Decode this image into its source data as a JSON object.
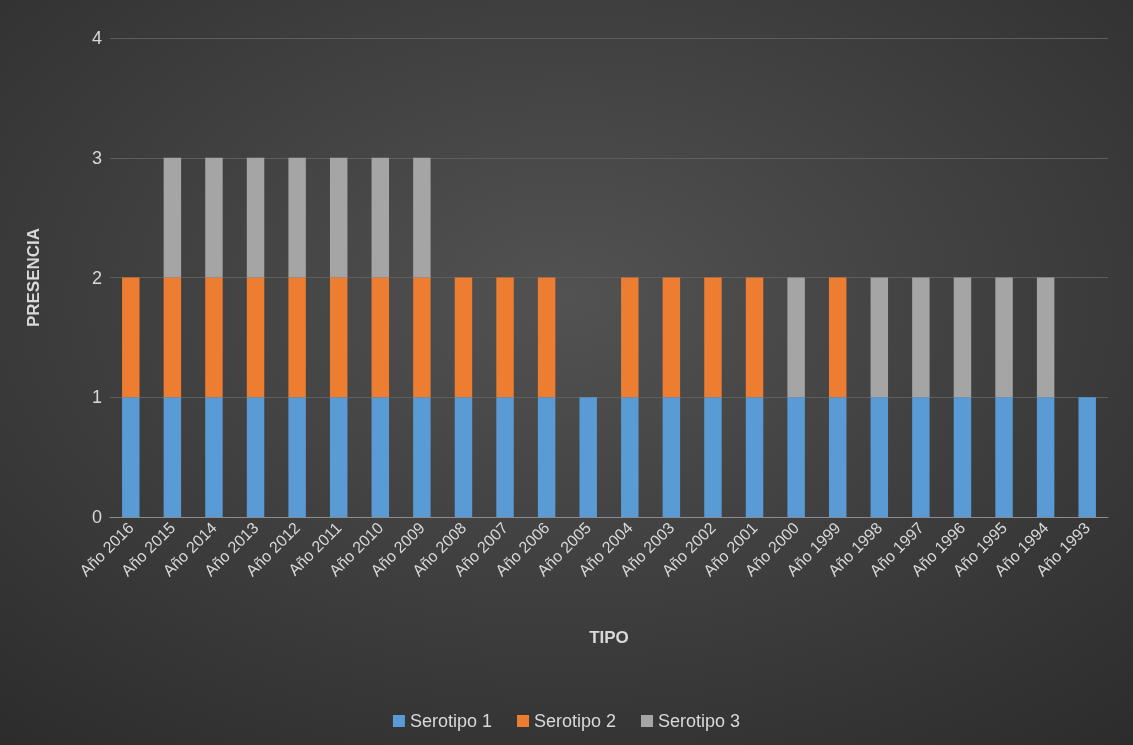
{
  "chart_data": {
    "type": "bar",
    "stacked": true,
    "xlabel": "TIPO",
    "ylabel": "PRESENCIA",
    "categories": [
      "Año 2016",
      "Año 2015",
      "Año 2014",
      "Año 2013",
      "Año 2012",
      "Año 2011",
      "Año 2010",
      "Año 2009",
      "Año 2008",
      "Año 2007",
      "Año 2006",
      "Año 2005",
      "Año 2004",
      "Año 2003",
      "Año 2002",
      "Año 2001",
      "Año 2000",
      "Año 1999",
      "Año 1998",
      "Año 1997",
      "Año 1996",
      "Año 1995",
      "Año 1994",
      "Año 1993"
    ],
    "series": [
      {
        "name": "Serotipo 1",
        "color": "#5b9bd5",
        "values": [
          1,
          1,
          1,
          1,
          1,
          1,
          1,
          1,
          1,
          1,
          1,
          1,
          1,
          1,
          1,
          1,
          1,
          1,
          1,
          1,
          1,
          1,
          1,
          1
        ]
      },
      {
        "name": "Serotipo 2",
        "color": "#ed7d31",
        "values": [
          1,
          1,
          1,
          1,
          1,
          1,
          1,
          1,
          1,
          1,
          1,
          0,
          1,
          1,
          1,
          1,
          0,
          1,
          0,
          0,
          0,
          0,
          0,
          0
        ]
      },
      {
        "name": "Serotipo 3",
        "color": "#a5a5a5",
        "values": [
          0,
          1,
          1,
          1,
          1,
          1,
          1,
          1,
          0,
          0,
          0,
          0,
          0,
          0,
          0,
          0,
          1,
          0,
          1,
          1,
          1,
          1,
          1,
          0
        ]
      }
    ],
    "ylim": [
      0,
      4
    ],
    "yticks": [
      0,
      1,
      2,
      3,
      4
    ],
    "grid": "y",
    "legend": "bottom"
  }
}
